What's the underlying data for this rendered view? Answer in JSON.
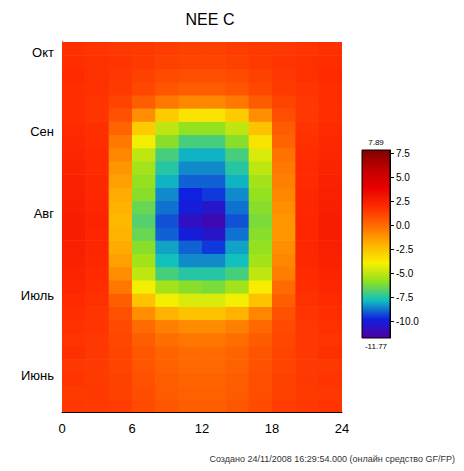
{
  "chart_data": {
    "type": "heatmap",
    "title": "NEE C",
    "footer": "Создано 24/11/2008 16:29:54.000 (онлайн средство GF/FP)",
    "xlim": [
      0,
      24
    ],
    "xticks": [
      0,
      6,
      12,
      18,
      24
    ],
    "ylim": [
      138,
      278
    ],
    "yticks": [
      {
        "value": 152,
        "label": "Июнь"
      },
      {
        "value": 182,
        "label": "Июль"
      },
      {
        "value": 213,
        "label": "Авг"
      },
      {
        "value": 244,
        "label": "Сен"
      },
      {
        "value": 274,
        "label": "Окт"
      }
    ],
    "x_edges": [
      0,
      2,
      4,
      6,
      8,
      10,
      12,
      14,
      16,
      18,
      20,
      22,
      24
    ],
    "y_edges": [
      138,
      143,
      148,
      153,
      158,
      163,
      168,
      173,
      178,
      183,
      188,
      193,
      198,
      203,
      208,
      213,
      218,
      223,
      228,
      233,
      238,
      243,
      248,
      253,
      258,
      263,
      268,
      273,
      278
    ],
    "cells": [
      [
        1.6,
        1.5,
        1.4,
        1.0,
        0.6,
        0.4,
        0.4,
        0.6,
        1.0,
        1.4,
        1.6,
        1.7
      ],
      [
        1.5,
        1.6,
        1.3,
        0.9,
        0.5,
        0.3,
        0.3,
        0.5,
        0.9,
        1.3,
        1.5,
        1.6
      ],
      [
        1.7,
        1.5,
        1.3,
        0.8,
        0.4,
        0.2,
        0.2,
        0.4,
        0.9,
        1.3,
        1.6,
        1.7
      ],
      [
        1.6,
        1.5,
        1.2,
        0.7,
        0.3,
        0.1,
        0.1,
        0.3,
        0.8,
        1.2,
        1.5,
        1.6
      ],
      [
        1.8,
        1.6,
        1.2,
        0.6,
        0.2,
        0.0,
        0.0,
        0.2,
        0.7,
        1.2,
        1.6,
        1.8
      ],
      [
        1.7,
        1.6,
        1.1,
        0.4,
        -0.1,
        -0.3,
        -0.3,
        -0.1,
        0.5,
        1.1,
        1.6,
        1.7
      ],
      [
        1.8,
        1.7,
        1.0,
        0.0,
        -0.6,
        -0.9,
        -0.9,
        -0.6,
        0.1,
        1.0,
        1.6,
        1.8
      ],
      [
        1.9,
        1.7,
        0.8,
        -1.0,
        -2.0,
        -2.5,
        -2.5,
        -2.0,
        -0.8,
        0.8,
        1.7,
        1.9
      ],
      [
        2.0,
        1.8,
        0.4,
        -2.5,
        -4.0,
        -4.5,
        -4.5,
        -4.0,
        -2.5,
        0.4,
        1.8,
        2.0
      ],
      [
        2.2,
        1.9,
        -0.3,
        -4.0,
        -5.5,
        -6.0,
        -6.2,
        -5.5,
        -3.8,
        0.0,
        1.9,
        2.2
      ],
      [
        2.3,
        2.0,
        -1.0,
        -5.0,
        -7.0,
        -7.5,
        -7.5,
        -7.0,
        -5.0,
        -0.5,
        2.0,
        2.3
      ],
      [
        2.4,
        2.1,
        -1.5,
        -5.5,
        -7.8,
        -8.5,
        -8.5,
        -7.8,
        -5.5,
        -0.8,
        2.1,
        2.4
      ],
      [
        2.5,
        2.2,
        -1.8,
        -6.0,
        -8.2,
        -9.0,
        -9.5,
        -8.2,
        -5.8,
        -1.0,
        2.1,
        2.5
      ],
      [
        2.6,
        2.2,
        -2.0,
        -6.5,
        -9.0,
        -10.0,
        -10.5,
        -8.8,
        -6.0,
        -1.2,
        2.2,
        2.6
      ],
      [
        2.6,
        2.3,
        -2.2,
        -6.8,
        -9.2,
        -10.8,
        -11.2,
        -9.2,
        -6.2,
        -1.2,
        2.2,
        2.6
      ],
      [
        2.5,
        2.2,
        -2.0,
        -6.5,
        -8.8,
        -10.0,
        -10.5,
        -8.8,
        -6.0,
        -1.0,
        2.1,
        2.5
      ],
      [
        2.5,
        2.1,
        -1.8,
        -6.0,
        -8.5,
        -9.8,
        -9.5,
        -8.5,
        -5.8,
        -0.8,
        2.1,
        2.5
      ],
      [
        2.4,
        2.1,
        -1.5,
        -5.8,
        -8.0,
        -9.0,
        -9.0,
        -8.0,
        -5.5,
        -0.6,
        2.0,
        2.4
      ],
      [
        2.3,
        2.0,
        -1.2,
        -5.5,
        -7.5,
        -8.5,
        -8.5,
        -7.5,
        -5.0,
        -0.4,
        2.0,
        2.3
      ],
      [
        2.2,
        2.0,
        -0.8,
        -5.0,
        -7.0,
        -8.0,
        -8.0,
        -7.0,
        -4.5,
        -0.2,
        1.9,
        2.2
      ],
      [
        2.1,
        1.9,
        -0.4,
        -4.0,
        -6.0,
        -7.0,
        -7.0,
        -6.0,
        -3.5,
        0.2,
        1.8,
        2.1
      ],
      [
        2.0,
        1.8,
        0.2,
        -2.8,
        -5.0,
        -5.8,
        -5.8,
        -5.0,
        -2.5,
        0.5,
        1.7,
        2.0
      ],
      [
        1.9,
        1.7,
        0.8,
        -1.0,
        -2.8,
        -3.5,
        -3.5,
        -2.8,
        -1.0,
        0.9,
        1.6,
        1.9
      ],
      [
        1.9,
        1.7,
        1.2,
        0.4,
        -0.4,
        -0.8,
        -0.8,
        -0.4,
        0.5,
        1.2,
        1.6,
        1.9
      ],
      [
        1.9,
        1.8,
        1.5,
        1.1,
        0.7,
        0.5,
        0.5,
        0.7,
        1.1,
        1.5,
        1.7,
        1.9
      ],
      [
        2.0,
        1.8,
        1.6,
        1.3,
        1.0,
        0.9,
        0.9,
        1.0,
        1.3,
        1.6,
        1.8,
        2.0
      ],
      [
        1.9,
        1.8,
        1.7,
        1.5,
        1.3,
        1.2,
        1.2,
        1.3,
        1.5,
        1.7,
        1.8,
        1.9
      ],
      [
        1.8,
        1.7,
        1.6,
        1.5,
        1.4,
        1.3,
        1.3,
        1.4,
        1.5,
        1.6,
        1.7,
        1.8
      ]
    ],
    "colorbar_range": [
      -11.77,
      7.89
    ],
    "colorbar_ticks": [
      7.5,
      {
        "value": 5,
        "label": "5.0"
      },
      2.5,
      {
        "value": 0,
        "label": "0.0"
      },
      -2.5,
      {
        "value": -5,
        "label": "-5.0"
      },
      -7.5,
      {
        "value": -10,
        "label": "-10.0"
      }
    ]
  }
}
